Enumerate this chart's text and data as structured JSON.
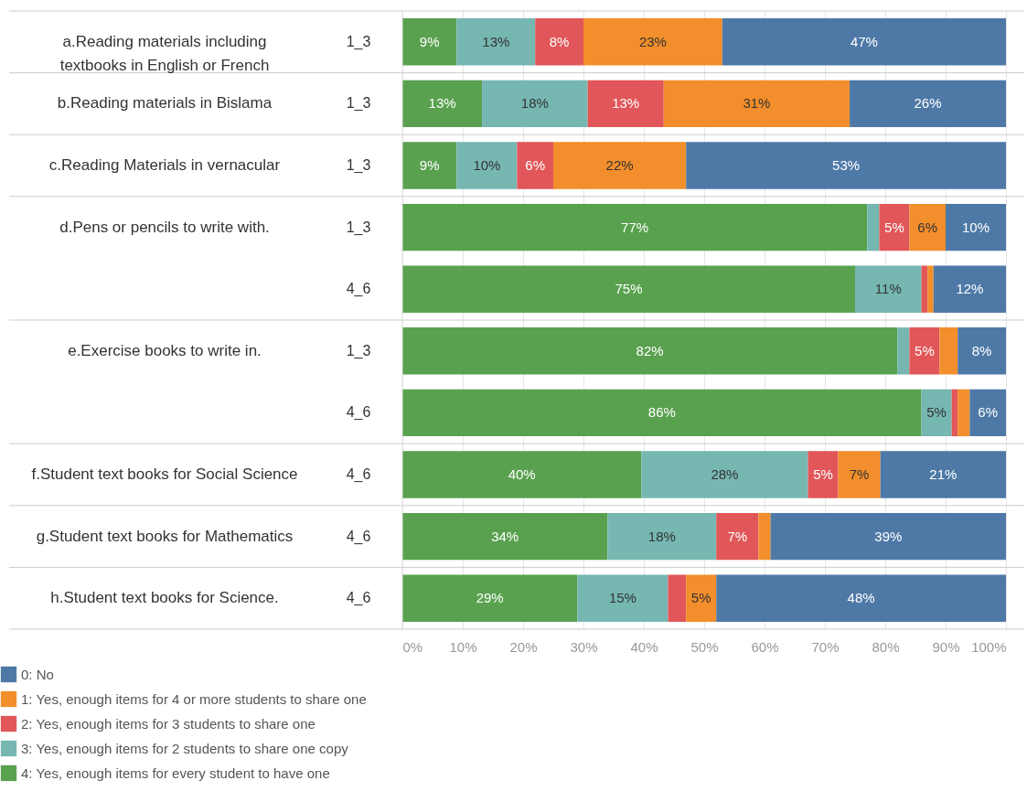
{
  "chart_data": {
    "type": "bar",
    "orientation": "horizontal",
    "stacked": true,
    "categories": [
      "1_3",
      "1_3",
      "1_3",
      "1_3",
      "4_6",
      "1_3",
      "4_6",
      "4_6",
      "4_6",
      "4_6"
    ],
    "annotations": [
      "a.Reading materials including\ntextbooks in English or French",
      "b.Reading materials in Bislama",
      "c.Reading Materials in vernacular",
      "d.Pens or pencils to write with.",
      "e.Exercise books to write in.",
      "f.Student text books for Social Science",
      "g.Student text books for Mathematics",
      "h.Student text books for Science."
    ],
    "series": [
      {
        "name": "4: Yes, enough items for every student to have one",
        "color": "#59a14f",
        "values": [
          9,
          13.2,
          9,
          77,
          75,
          82,
          86,
          39.6,
          34,
          29
        ],
        "value_labels": [
          "9%",
          "13%",
          "9%",
          "77%",
          "75%",
          "82%",
          "86%",
          "40%",
          "34%",
          "29%"
        ]
      },
      {
        "name": "3: Yes, enough items for 2 students to share one copy",
        "color": "#76b7b2",
        "values": [
          13,
          17.5,
          10,
          2,
          11,
          2,
          5,
          27.6,
          18,
          15
        ],
        "value_labels": [
          "13%",
          "18%",
          "10%",
          null,
          "11%",
          null,
          "5%",
          "28%",
          "18%",
          "15%"
        ]
      },
      {
        "name": "2: Yes, enough items for 3 students to share one",
        "color": "#e15759",
        "values": [
          8,
          12.6,
          6,
          5,
          1,
          5,
          1,
          5,
          7,
          3
        ],
        "value_labels": [
          "8%",
          "13%",
          "6%",
          "5%",
          null,
          "5%",
          null,
          "5%",
          "7%",
          null
        ]
      },
      {
        "name": "1: Yes, enough items for 4 or more students to share one",
        "color": "#f28e2b",
        "values": [
          23,
          30.8,
          22,
          6,
          1,
          3,
          2,
          7,
          2,
          5
        ],
        "value_labels": [
          "23%",
          "31%",
          "22%",
          "6%",
          null,
          null,
          null,
          "7%",
          null,
          "5%"
        ]
      },
      {
        "name": "0: No",
        "color": "#4e79a7",
        "values": [
          47,
          25.9,
          53,
          10,
          12,
          8,
          6,
          20.8,
          39,
          48
        ],
        "value_labels": [
          "47%",
          "26%",
          "53%",
          "10%",
          "12%",
          "8%",
          "6%",
          "21%",
          "39%",
          "48%"
        ]
      }
    ],
    "xlim": [
      0,
      100
    ],
    "xticks": [
      {
        "value": 0,
        "label": "0%"
      },
      {
        "value": 10,
        "label": "10%"
      },
      {
        "value": 20,
        "label": "20%"
      },
      {
        "value": 30,
        "label": "30%"
      },
      {
        "value": 40,
        "label": "40%"
      },
      {
        "value": 50,
        "label": "50%"
      },
      {
        "value": 60,
        "label": "60%"
      },
      {
        "value": 70,
        "label": "70%"
      },
      {
        "value": 80,
        "label": "80%"
      },
      {
        "value": 90,
        "label": "90%"
      },
      {
        "value": 100,
        "label": "100%"
      }
    ],
    "grid": "x",
    "legend": "bottom left"
  }
}
